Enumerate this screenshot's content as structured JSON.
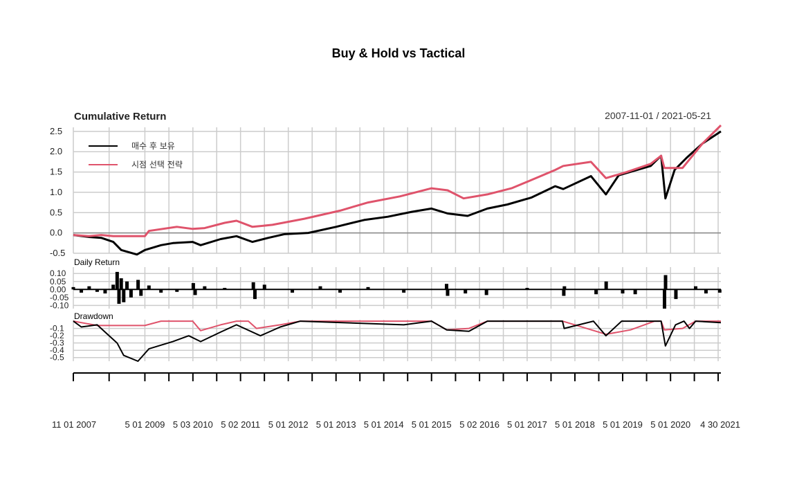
{
  "chart_data": {
    "type": "line",
    "title": "Buy & Hold vs Tactical",
    "date_range": "2007-11-01 / 2021-05-21",
    "x_range": [
      "2007-11-01",
      "2021-05-21"
    ],
    "x_tick_labels": [
      "11 01 2007",
      "5 01 2009",
      "5 03 2010",
      "5 02 2011",
      "5 01 2012",
      "5 01 2013",
      "5 01 2014",
      "5 01 2015",
      "5 02 2016",
      "5 01 2017",
      "5 01 2018",
      "5 01 2019",
      "5 01 2020",
      "4 30 2021"
    ],
    "grid": true,
    "legend_position": "top-left",
    "colors": {
      "buy_hold": "#000000",
      "tactical": "#DF536B",
      "grid": "#cccccc",
      "zero": "#888888"
    },
    "panels": [
      {
        "id": "cumulative",
        "title": "Cumulative Return",
        "ylim": [
          -0.5,
          2.6
        ],
        "yticks": [
          "-0.5",
          "0.0",
          "0.5",
          "1.0",
          "1.5",
          "2.0",
          "2.5"
        ],
        "series": [
          {
            "name": "매수 후 보유",
            "color": "#000000",
            "points": [
              [
                "2007-11-01",
                -0.05
              ],
              [
                "2008-03-01",
                -0.1
              ],
              [
                "2008-06-01",
                -0.12
              ],
              [
                "2008-09-01",
                -0.22
              ],
              [
                "2008-11-01",
                -0.42
              ],
              [
                "2009-03-01",
                -0.53
              ],
              [
                "2009-05-01",
                -0.42
              ],
              [
                "2009-09-01",
                -0.3
              ],
              [
                "2009-12-01",
                -0.25
              ],
              [
                "2010-05-01",
                -0.22
              ],
              [
                "2010-07-01",
                -0.3
              ],
              [
                "2010-12-01",
                -0.15
              ],
              [
                "2011-04-01",
                -0.08
              ],
              [
                "2011-08-01",
                -0.22
              ],
              [
                "2011-12-01",
                -0.12
              ],
              [
                "2012-04-01",
                -0.03
              ],
              [
                "2012-10-01",
                0.0
              ],
              [
                "2013-05-01",
                0.15
              ],
              [
                "2013-12-01",
                0.32
              ],
              [
                "2014-06-01",
                0.4
              ],
              [
                "2014-12-01",
                0.52
              ],
              [
                "2015-05-01",
                0.6
              ],
              [
                "2015-09-01",
                0.48
              ],
              [
                "2016-02-01",
                0.42
              ],
              [
                "2016-07-01",
                0.6
              ],
              [
                "2016-12-01",
                0.7
              ],
              [
                "2017-06-01",
                0.87
              ],
              [
                "2017-12-01",
                1.15
              ],
              [
                "2018-02-01",
                1.08
              ],
              [
                "2018-09-01",
                1.4
              ],
              [
                "2018-12-24",
                0.95
              ],
              [
                "2019-04-01",
                1.42
              ],
              [
                "2019-12-01",
                1.65
              ],
              [
                "2020-02-19",
                1.9
              ],
              [
                "2020-03-23",
                0.85
              ],
              [
                "2020-06-01",
                1.55
              ],
              [
                "2020-09-01",
                1.85
              ],
              [
                "2020-12-31",
                2.2
              ],
              [
                "2021-05-21",
                2.5
              ]
            ]
          },
          {
            "name": "시점 선택 전략",
            "color": "#DF536B",
            "points": [
              [
                "2007-11-01",
                -0.05
              ],
              [
                "2008-03-01",
                -0.08
              ],
              [
                "2008-06-01",
                -0.05
              ],
              [
                "2008-09-01",
                -0.08
              ],
              [
                "2009-05-01",
                -0.08
              ],
              [
                "2009-06-01",
                0.05
              ],
              [
                "2010-01-01",
                0.15
              ],
              [
                "2010-05-01",
                0.1
              ],
              [
                "2010-08-01",
                0.12
              ],
              [
                "2011-01-01",
                0.25
              ],
              [
                "2011-04-01",
                0.3
              ],
              [
                "2011-08-01",
                0.15
              ],
              [
                "2012-01-01",
                0.2
              ],
              [
                "2012-09-01",
                0.35
              ],
              [
                "2013-06-01",
                0.55
              ],
              [
                "2014-01-01",
                0.75
              ],
              [
                "2014-09-01",
                0.9
              ],
              [
                "2015-05-01",
                1.1
              ],
              [
                "2015-09-01",
                1.05
              ],
              [
                "2016-01-01",
                0.85
              ],
              [
                "2016-07-01",
                0.95
              ],
              [
                "2017-01-01",
                1.1
              ],
              [
                "2017-06-01",
                1.3
              ],
              [
                "2017-12-01",
                1.55
              ],
              [
                "2018-02-01",
                1.65
              ],
              [
                "2018-09-01",
                1.75
              ],
              [
                "2018-12-24",
                1.35
              ],
              [
                "2019-06-01",
                1.5
              ],
              [
                "2019-12-01",
                1.7
              ],
              [
                "2020-02-19",
                1.9
              ],
              [
                "2020-03-15",
                1.6
              ],
              [
                "2020-08-01",
                1.6
              ],
              [
                "2020-12-31",
                2.2
              ],
              [
                "2021-05-21",
                2.65
              ]
            ]
          }
        ]
      },
      {
        "id": "daily",
        "title": "Daily Return",
        "ylim": [
          -0.12,
          0.14
        ],
        "yticks": [
          "0.10",
          "0.05",
          "0.00",
          "-0.05",
          "-0.10"
        ],
        "bars": [
          [
            "2007-11-01",
            0.015
          ],
          [
            "2008-01-01",
            -0.02
          ],
          [
            "2008-03-01",
            0.02
          ],
          [
            "2008-05-01",
            -0.015
          ],
          [
            "2008-07-01",
            -0.025
          ],
          [
            "2008-09-01",
            0.03
          ],
          [
            "2008-10-01",
            0.11
          ],
          [
            "2008-10-15",
            -0.09
          ],
          [
            "2008-11-01",
            0.07
          ],
          [
            "2008-11-20",
            -0.08
          ],
          [
            "2008-12-15",
            0.05
          ],
          [
            "2009-01-15",
            -0.05
          ],
          [
            "2009-03-10",
            0.06
          ],
          [
            "2009-04-01",
            -0.04
          ],
          [
            "2009-06-01",
            0.025
          ],
          [
            "2009-09-01",
            -0.02
          ],
          [
            "2010-01-01",
            -0.015
          ],
          [
            "2010-05-06",
            0.04
          ],
          [
            "2010-05-20",
            -0.035
          ],
          [
            "2010-08-01",
            0.02
          ],
          [
            "2011-01-01",
            0.01
          ],
          [
            "2011-08-08",
            0.045
          ],
          [
            "2011-08-20",
            -0.06
          ],
          [
            "2011-11-01",
            0.03
          ],
          [
            "2012-06-01",
            -0.02
          ],
          [
            "2013-01-01",
            0.02
          ],
          [
            "2013-06-01",
            -0.02
          ],
          [
            "2014-01-01",
            0.015
          ],
          [
            "2014-10-01",
            -0.02
          ],
          [
            "2015-08-24",
            0.035
          ],
          [
            "2015-09-01",
            -0.04
          ],
          [
            "2016-01-15",
            -0.025
          ],
          [
            "2016-06-24",
            -0.035
          ],
          [
            "2017-05-01",
            0.01
          ],
          [
            "2018-02-05",
            -0.04
          ],
          [
            "2018-02-10",
            0.02
          ],
          [
            "2018-10-10",
            -0.03
          ],
          [
            "2018-12-26",
            0.05
          ],
          [
            "2019-05-01",
            -0.025
          ],
          [
            "2019-08-05",
            -0.03
          ],
          [
            "2020-03-16",
            -0.12
          ],
          [
            "2020-03-24",
            0.09
          ],
          [
            "2020-06-11",
            -0.06
          ],
          [
            "2020-11-09",
            0.02
          ],
          [
            "2021-01-27",
            -0.025
          ],
          [
            "2021-05-12",
            -0.02
          ]
        ]
      },
      {
        "id": "drawdown",
        "title": "Drawdown",
        "ylim": [
          -0.55,
          0.02
        ],
        "yticks": [
          "-0.1",
          "-0.2",
          "-0.3",
          "-0.4",
          "-0.5"
        ],
        "series": [
          {
            "name": "매수 후 보유",
            "color": "#000000",
            "points": [
              [
                "2007-11-01",
                0.0
              ],
              [
                "2008-01-01",
                -0.08
              ],
              [
                "2008-05-01",
                -0.05
              ],
              [
                "2008-07-01",
                -0.15
              ],
              [
                "2008-10-01",
                -0.3
              ],
              [
                "2008-11-20",
                -0.47
              ],
              [
                "2009-03-09",
                -0.55
              ],
              [
                "2009-06-01",
                -0.38
              ],
              [
                "2009-12-01",
                -0.28
              ],
              [
                "2010-04-01",
                -0.2
              ],
              [
                "2010-07-01",
                -0.28
              ],
              [
                "2010-12-01",
                -0.15
              ],
              [
                "2011-04-01",
                -0.05
              ],
              [
                "2011-10-01",
                -0.2
              ],
              [
                "2012-03-01",
                -0.08
              ],
              [
                "2012-08-01",
                0.0
              ],
              [
                "2014-10-01",
                -0.05
              ],
              [
                "2015-05-01",
                0.0
              ],
              [
                "2015-08-25",
                -0.12
              ],
              [
                "2016-02-11",
                -0.14
              ],
              [
                "2016-07-01",
                0.0
              ],
              [
                "2018-01-26",
                0.0
              ],
              [
                "2018-02-08",
                -0.1
              ],
              [
                "2018-09-20",
                0.0
              ],
              [
                "2018-12-24",
                -0.2
              ],
              [
                "2019-04-23",
                0.0
              ],
              [
                "2020-02-19",
                0.0
              ],
              [
                "2020-03-23",
                -0.34
              ],
              [
                "2020-06-08",
                -0.05
              ],
              [
                "2020-08-12",
                0.0
              ],
              [
                "2020-09-23",
                -0.1
              ],
              [
                "2020-11-09",
                0.0
              ],
              [
                "2021-05-21",
                -0.02
              ]
            ]
          },
          {
            "name": "시점 선택 전략",
            "color": "#DF536B",
            "points": [
              [
                "2007-11-01",
                0.0
              ],
              [
                "2008-05-01",
                -0.06
              ],
              [
                "2009-05-01",
                -0.06
              ],
              [
                "2009-09-01",
                0.0
              ],
              [
                "2010-05-01",
                0.0
              ],
              [
                "2010-07-01",
                -0.13
              ],
              [
                "2010-12-01",
                -0.05
              ],
              [
                "2011-04-01",
                0.0
              ],
              [
                "2011-07-01",
                0.0
              ],
              [
                "2011-09-01",
                -0.1
              ],
              [
                "2012-03-01",
                -0.05
              ],
              [
                "2012-08-01",
                0.0
              ],
              [
                "2015-05-01",
                0.0
              ],
              [
                "2015-08-25",
                -0.12
              ],
              [
                "2016-02-11",
                -0.1
              ],
              [
                "2016-07-01",
                0.0
              ],
              [
                "2018-01-26",
                0.0
              ],
              [
                "2018-12-24",
                -0.18
              ],
              [
                "2019-07-01",
                -0.12
              ],
              [
                "2020-01-01",
                0.0
              ],
              [
                "2020-02-19",
                0.0
              ],
              [
                "2020-03-15",
                -0.12
              ],
              [
                "2020-08-01",
                -0.1
              ],
              [
                "2020-11-09",
                0.0
              ],
              [
                "2021-05-21",
                0.0
              ]
            ]
          }
        ]
      }
    ]
  }
}
